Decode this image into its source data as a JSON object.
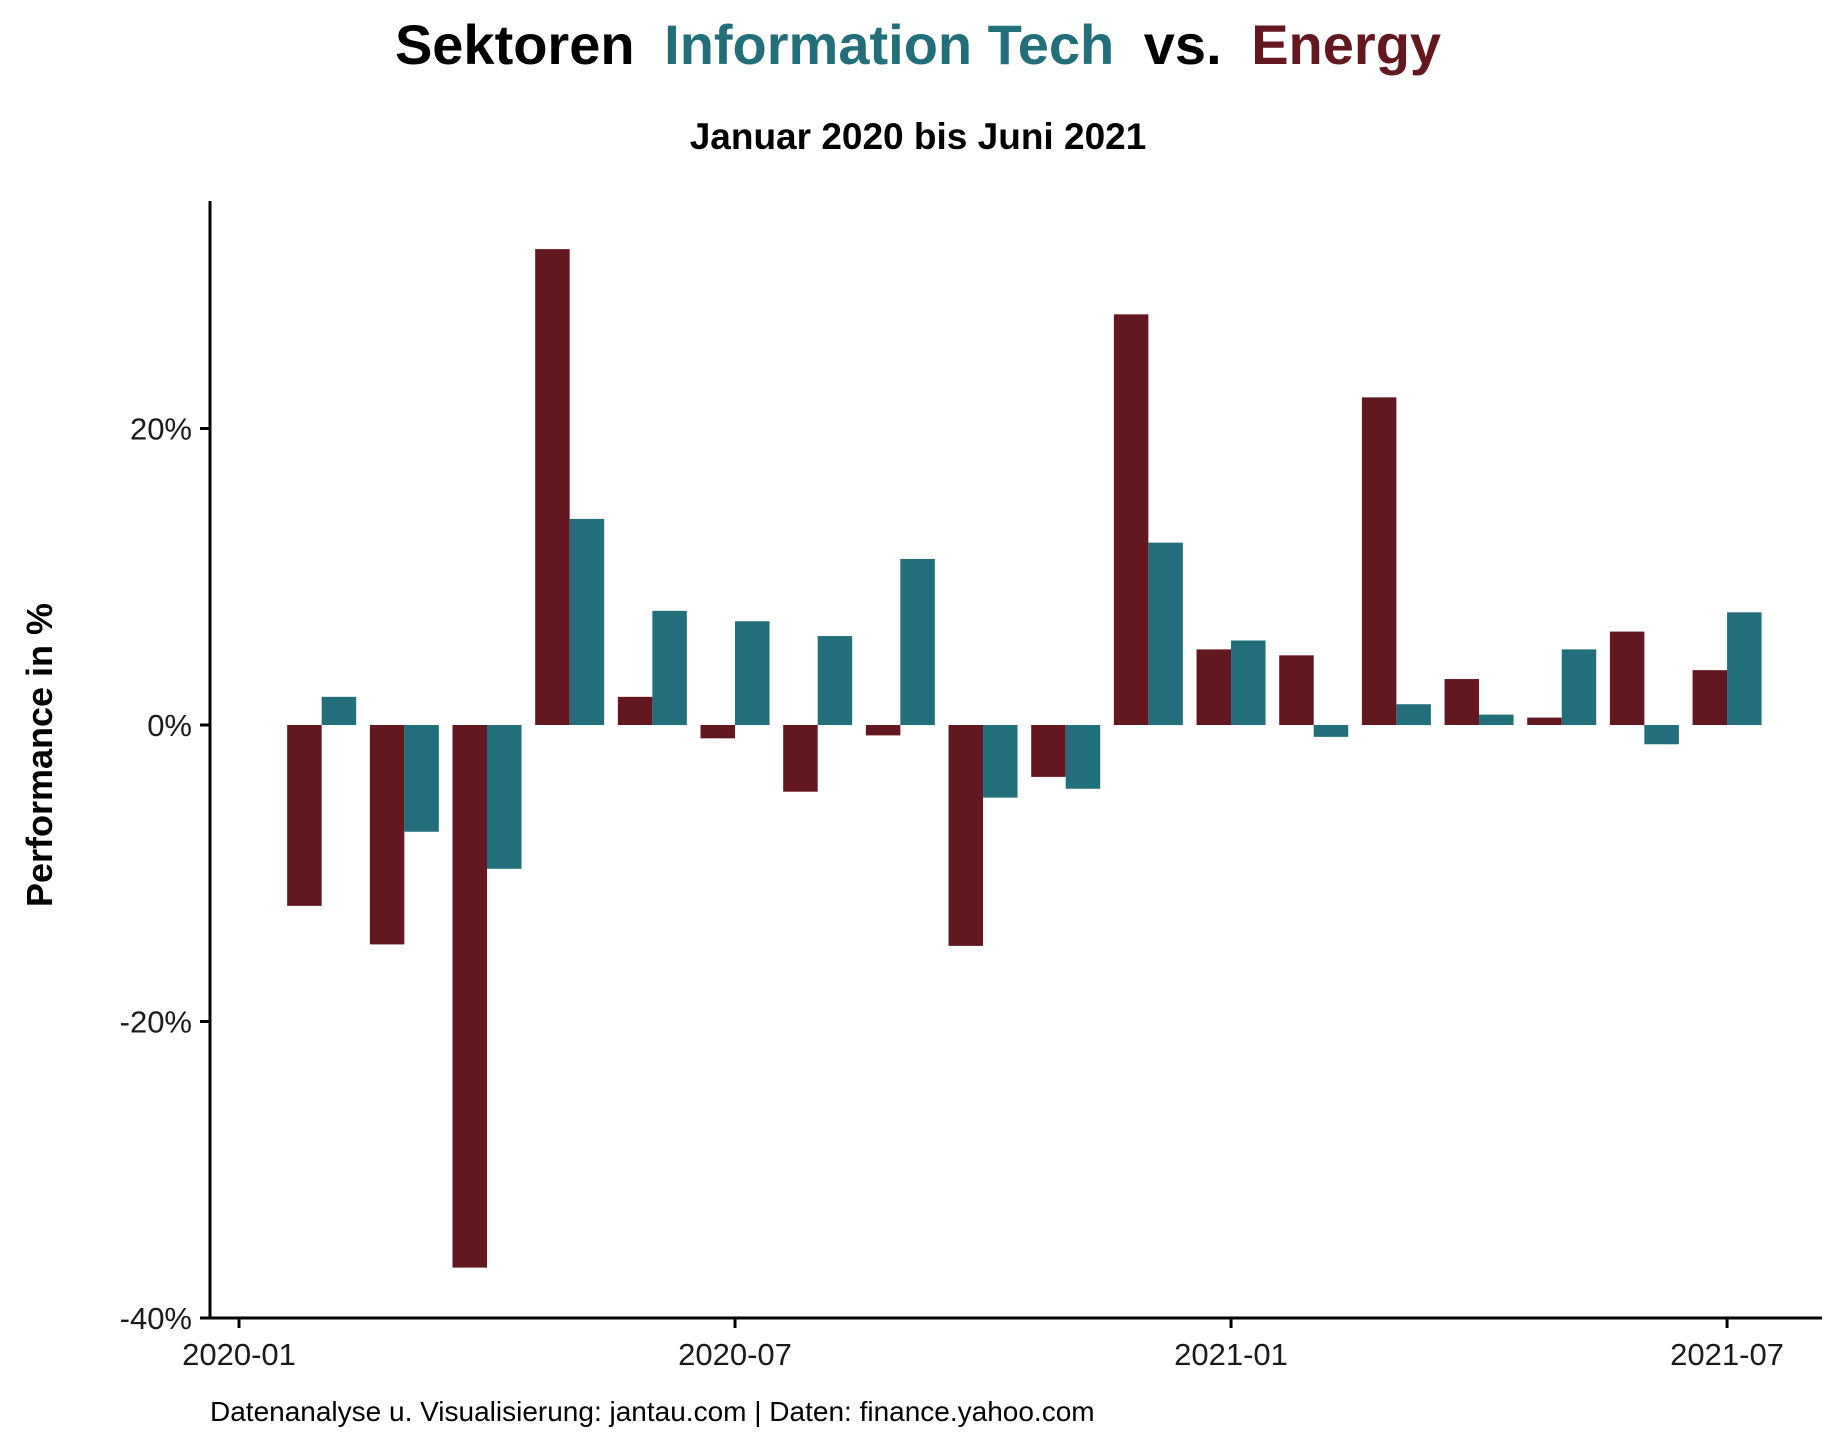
{
  "colors": {
    "information_tech": "#226e7b",
    "energy": "#63181f",
    "text": "#000000",
    "axis": "#000000"
  },
  "title": {
    "part1": "Sektoren",
    "part2": "Information Tech",
    "part3": "vs.",
    "part4": "Energy"
  },
  "subtitle": "Januar 2020 bis Juni 2021",
  "caption": "Datenanalyse u. Visualisierung: jantau.com | Daten: finance.yahoo.com",
  "chart_data": {
    "type": "bar",
    "title": "Sektoren Information Tech vs. Energy",
    "subtitle": "Januar 2020 bis Juni 2021",
    "xlabel": "",
    "ylabel": "Performance in %",
    "x_ticks": [
      "2020-01",
      "2020-07",
      "2021-01",
      "2021-07"
    ],
    "y_ticks": [
      "-40%",
      "-20%",
      "0%",
      "20%"
    ],
    "y_tick_values": [
      -40,
      -20,
      0,
      20
    ],
    "ylim": [
      -40,
      35
    ],
    "grid": false,
    "legend": "none",
    "categories": [
      "2020-02",
      "2020-03",
      "2020-04",
      "2020-05",
      "2020-06",
      "2020-07",
      "2020-08",
      "2020-09",
      "2020-10",
      "2020-11",
      "2020-12",
      "2021-01",
      "2021-02",
      "2021-03",
      "2021-04",
      "2021-05",
      "2021-06",
      "2021-07"
    ],
    "series": [
      {
        "name": "Energy",
        "color": "#63181f",
        "values": [
          -12.2,
          -14.8,
          -36.6,
          32.1,
          1.9,
          -0.9,
          -4.5,
          -0.7,
          -14.9,
          -3.5,
          27.7,
          5.1,
          4.7,
          22.1,
          3.1,
          0.5,
          6.3,
          3.7
        ]
      },
      {
        "name": "Information Tech",
        "color": "#226e7b",
        "values": [
          1.9,
          -7.2,
          -9.7,
          13.9,
          7.7,
          7.0,
          6.0,
          11.2,
          -4.9,
          -4.3,
          12.3,
          5.7,
          -0.8,
          1.4,
          0.7,
          5.1,
          -1.3,
          7.6
        ]
      }
    ]
  }
}
